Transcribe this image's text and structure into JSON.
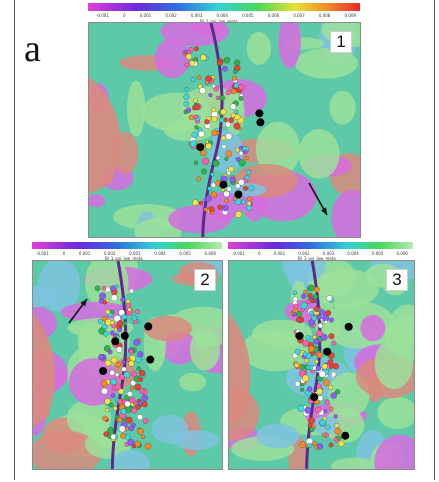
{
  "figure_label": "a",
  "panels": [
    {
      "number": "1",
      "colorbar": {
        "ticks": [
          "-0.001",
          "0",
          "0.001",
          "0.002",
          "0.003",
          "0.004",
          "0.005",
          "0.006",
          "0.007",
          "0.008",
          "0.009"
        ],
        "title": "Bl_1_poi_low_meta"
      },
      "arrow": true
    },
    {
      "number": "2",
      "colorbar": {
        "ticks": [
          "-0.001",
          "0",
          "0.001",
          "0.002",
          "0.003",
          "0.004",
          "0.005",
          "0.006"
        ],
        "title": "Bl_1_poi_low_meta"
      },
      "arrow": true
    },
    {
      "number": "3",
      "colorbar": {
        "ticks": [
          "-0.001",
          "0",
          "0.001",
          "0.002",
          "0.003",
          "0.004",
          "0.005",
          "0.006"
        ],
        "title": "Bl_1_poi_low_meta"
      },
      "arrow": false
    }
  ],
  "colors": {
    "magenta": "#d76be0",
    "cyan_green": "#5ec9a8",
    "light_green": "#9be19a",
    "salmon": "#d98a7e",
    "purple_track": "#5b2a8a"
  }
}
